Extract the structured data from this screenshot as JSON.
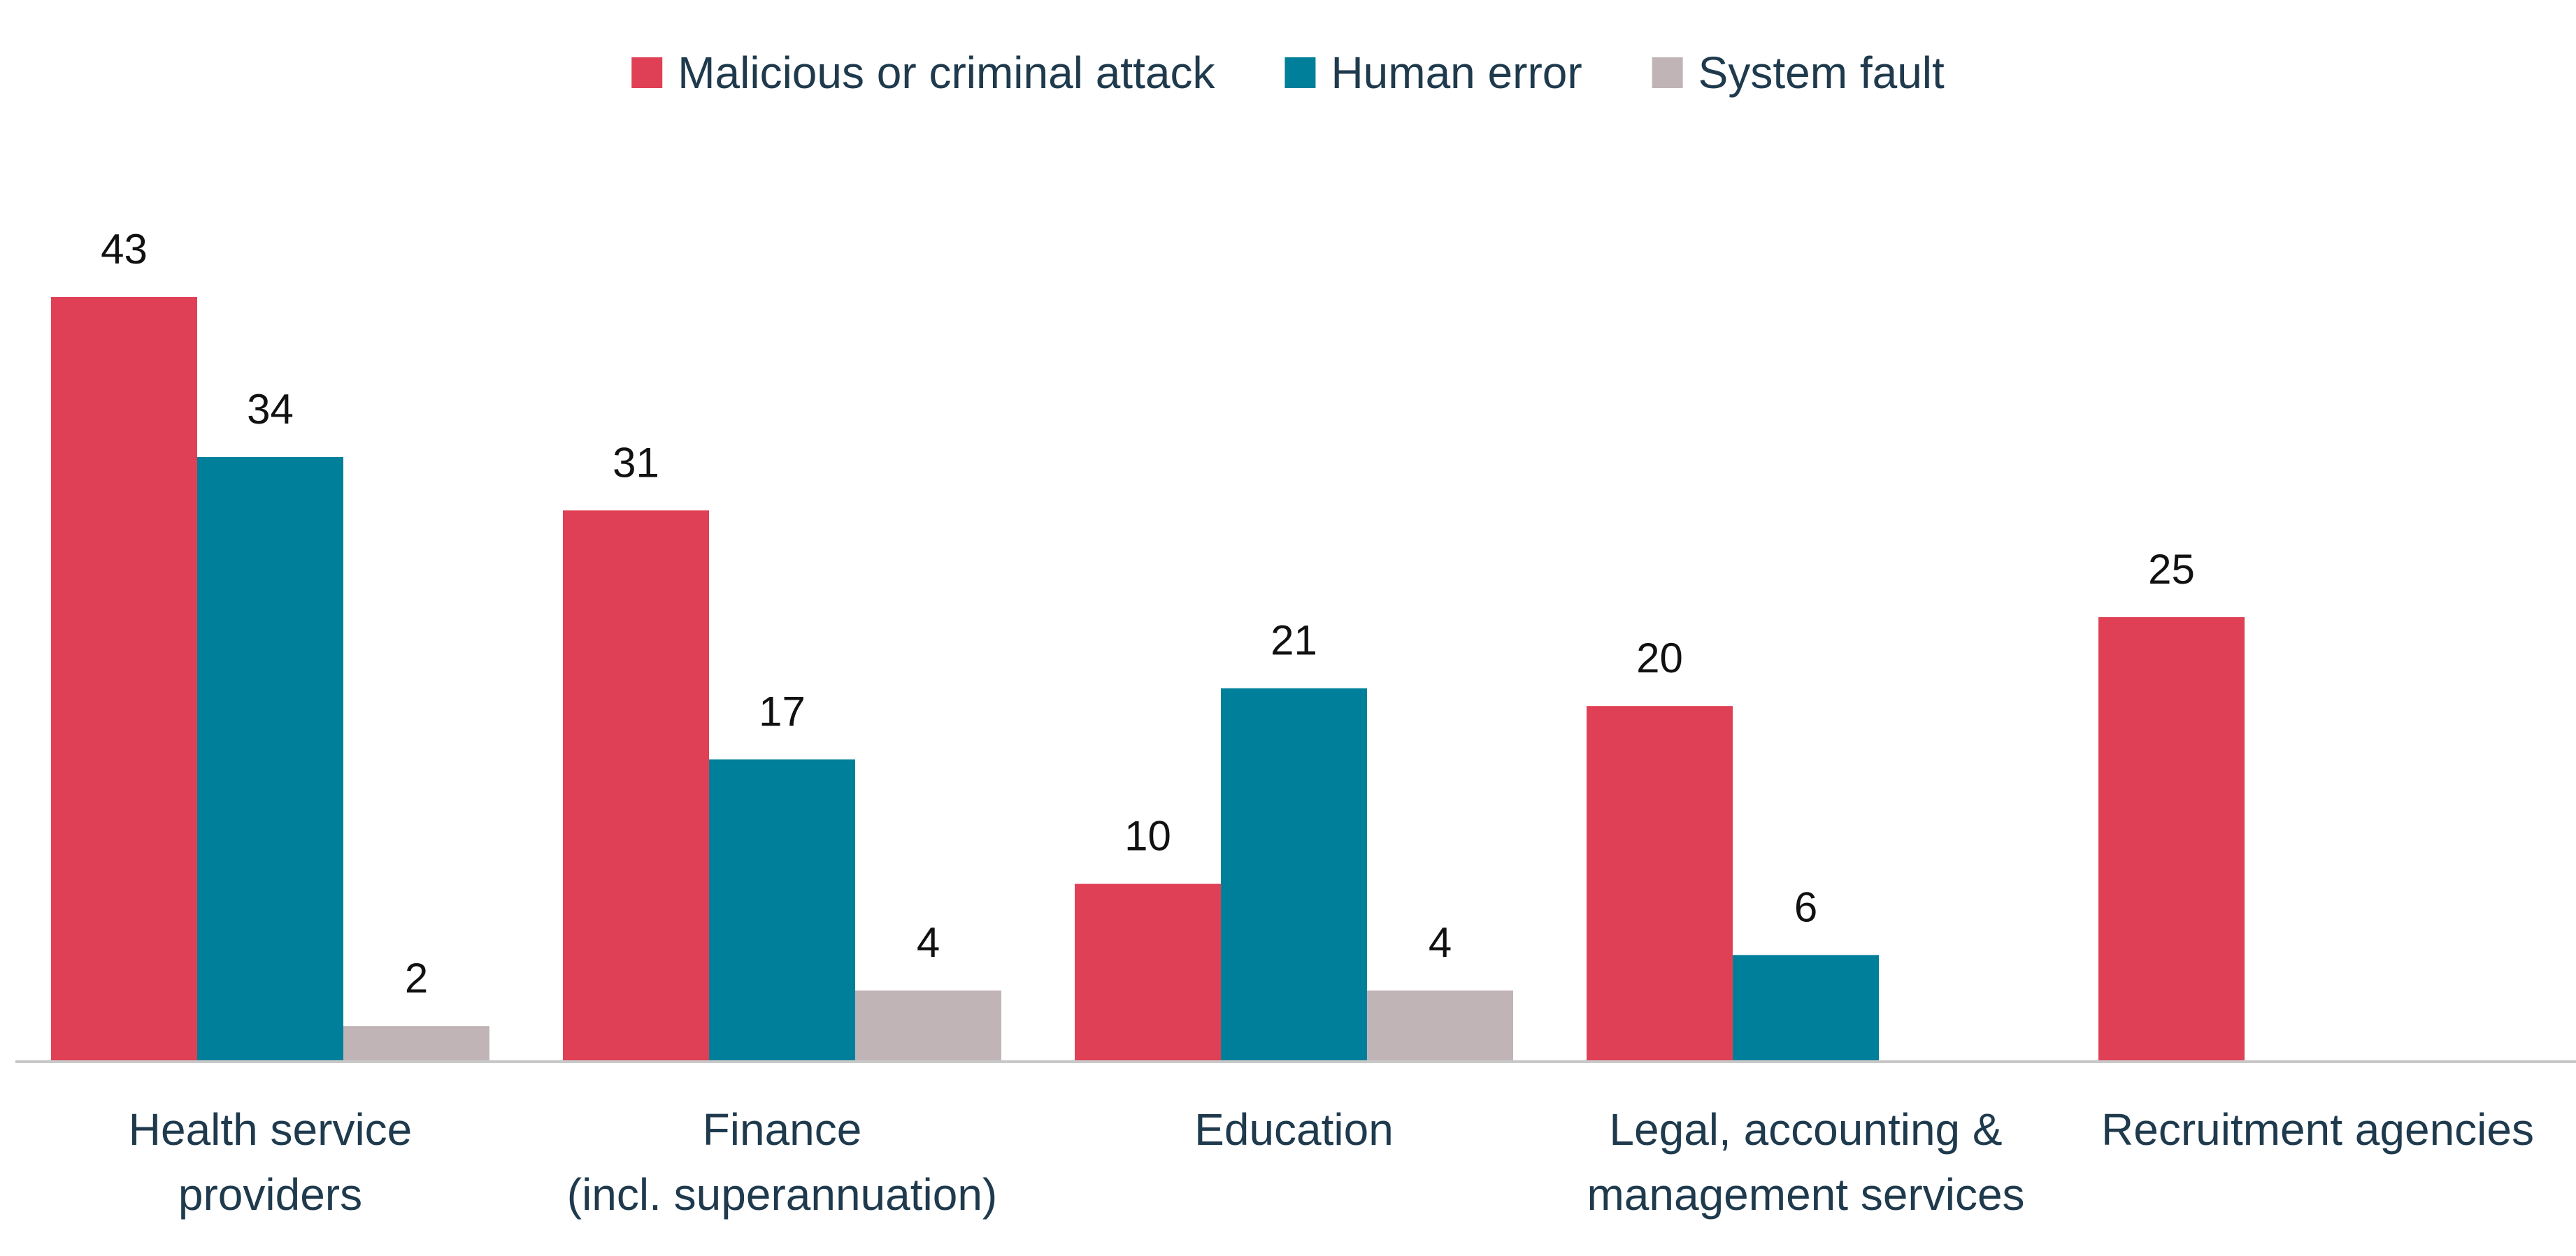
{
  "chart_data": {
    "type": "bar",
    "categories": [
      [
        "Health service",
        "providers"
      ],
      [
        "Finance",
        "(incl. superannuation)"
      ],
      [
        "Education"
      ],
      [
        "Legal, accounting &",
        "management services"
      ],
      [
        "Recruitment agencies"
      ]
    ],
    "series": [
      {
        "name": "Malicious or criminal attack",
        "color": "#e04055",
        "values": [
          43,
          31,
          10,
          20,
          25
        ]
      },
      {
        "name": "Human error",
        "color": "#007f9a",
        "values": [
          34,
          17,
          21,
          6,
          null
        ]
      },
      {
        "name": "System fault",
        "color": "#c1b4b7",
        "values": [
          2,
          4,
          4,
          null,
          null
        ]
      }
    ],
    "ylim": [
      0,
      43
    ],
    "grid": false,
    "legend_position": "top-center",
    "data_labels": true
  }
}
